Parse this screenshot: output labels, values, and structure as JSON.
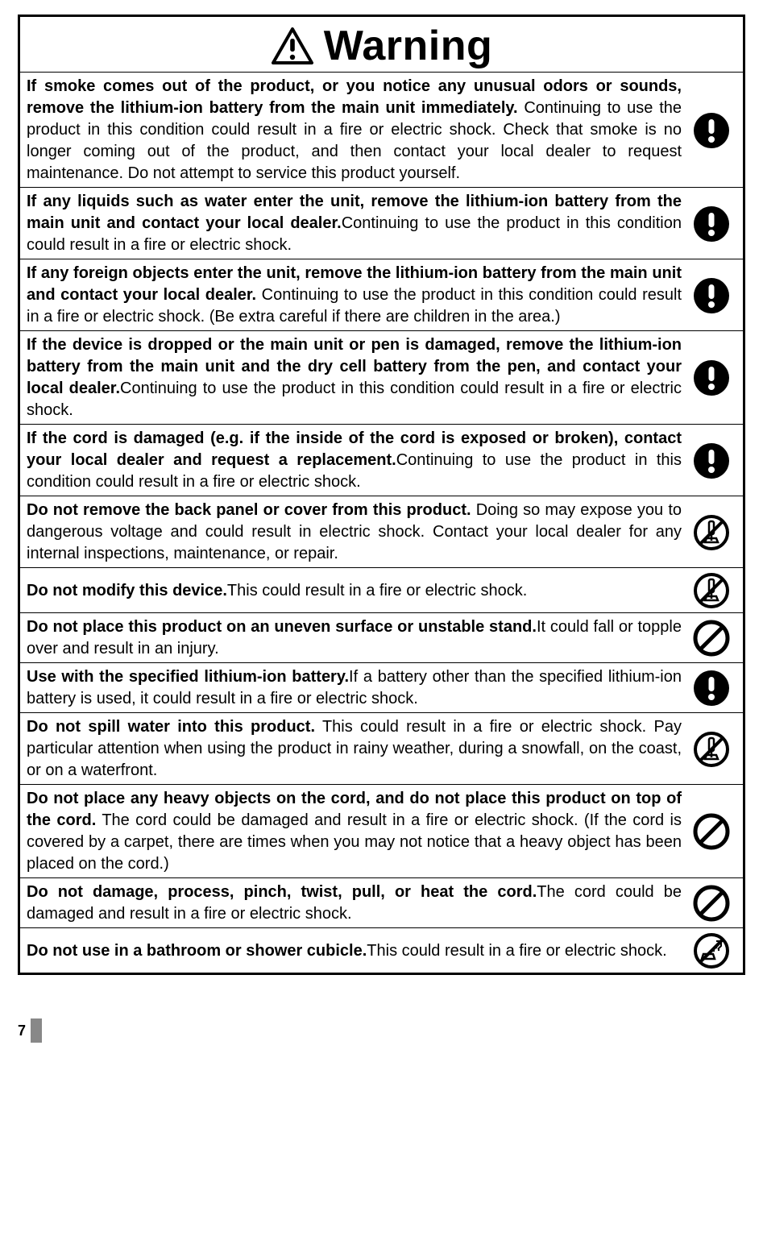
{
  "title": "Warning",
  "pageNumber": "7",
  "icons": {
    "mandatory": {
      "type": "mandatory",
      "bg": "#000000",
      "fg": "#ffffff"
    },
    "no_disassemble": {
      "type": "no-disassemble",
      "stroke": "#000000"
    },
    "prohibit": {
      "type": "prohibit",
      "stroke": "#000000"
    },
    "no_wet": {
      "type": "no-wet",
      "stroke": "#000000"
    }
  },
  "rows": [
    {
      "bold": "If smoke comes out of the product, or you notice any unusual odors or sounds, remove the lithium-ion battery from the main unit immediately.",
      "rest": " Continuing to use the product in this condition could result in a fire or electric shock. Check that smoke is no longer coming out of the product, and then contact your local dealer to request maintenance. Do not attempt to service this product yourself.",
      "icon": "mandatory"
    },
    {
      "bold": "If any liquids such as water enter the unit, remove the lithium-ion battery from the main unit and contact your local dealer.",
      "rest": "Continuing to use the product in this condition could result in a fire or electric shock.",
      "icon": "mandatory"
    },
    {
      "bold": "If any foreign objects enter the unit, remove the lithium-ion battery from the main unit and contact your local dealer.",
      "rest": " Continuing to use the product in this condition could result in a fire or electric shock. (Be extra careful if there are children in the area.)",
      "icon": "mandatory"
    },
    {
      "bold": "If the device is dropped or the main unit or pen is damaged, remove the lithium-ion battery from the main unit and the dry cell battery from the pen, and contact your local dealer.",
      "rest": "Continuing to use the product in this condition could result in a fire or electric shock.",
      "icon": "mandatory"
    },
    {
      "bold": "If the cord is damaged (e.g. if the inside of the cord is exposed or broken), contact your local dealer and request a replacement.",
      "rest": "Continuing to use the product in this condition could result in a fire or electric shock.",
      "icon": "mandatory"
    },
    {
      "bold": "Do not remove the back panel or cover from this product.",
      "rest": " Doing so may expose you to dangerous voltage and could result in electric shock. Contact your local dealer for any internal inspections, maintenance, or repair.",
      "icon": "no_disassemble"
    },
    {
      "bold": "Do not modify this device.",
      "rest": "This could result in a fire or electric shock.",
      "icon": "no_disassemble"
    },
    {
      "bold": "Do not place this product on an uneven surface or unstable stand.",
      "rest": "It could fall or topple over and result in an injury.",
      "icon": "prohibit"
    },
    {
      "bold": "Use with the specified lithium-ion battery.",
      "rest": "If a battery other than the specified lithium-ion battery is used, it could result in a fire or electric shock.",
      "icon": "mandatory"
    },
    {
      "bold": "Do not spill water into this product.",
      "rest": " This could result in a fire or electric shock. Pay particular attention when using the product in rainy weather, during a snowfall, on the coast, or on a waterfront.",
      "icon": "no_disassemble"
    },
    {
      "bold": "Do not place any heavy objects on the cord, and do not place this product on top of the cord.",
      "rest": " The cord could be damaged and result in a fire or electric shock. (If the cord is covered by a carpet, there are times when you may not notice that a heavy object has been placed on the cord.)",
      "icon": "prohibit"
    },
    {
      "bold": "Do not damage, process, pinch, twist, pull, or heat the cord.",
      "rest": "The cord could be damaged and result in a fire or electric shock.",
      "icon": "prohibit"
    },
    {
      "bold": "Do not use in a bathroom or shower cubicle.",
      "rest": "This could result in a fire or electric shock.",
      "icon": "no_wet"
    }
  ]
}
